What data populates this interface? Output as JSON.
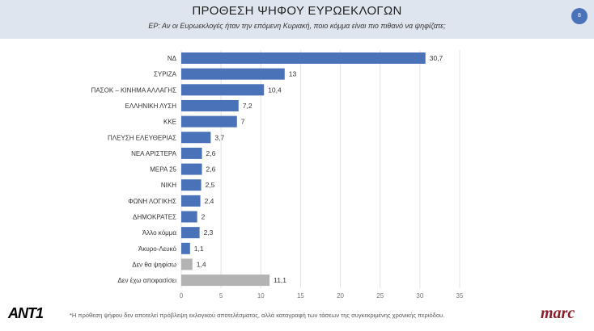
{
  "header": {
    "title": "ΠΡΟΘΕΣΗ ΨΗΦΟΥ ΕΥΡΩΕΚΛΟΓΩΝ",
    "subtitle": "ΕΡ: Αν οι Ευρωεκλογές ήταν την επόμενη Κυριακή, ποιο κόμμα είναι πιο πιθανό να ψηφίζατε;",
    "page_number": "8"
  },
  "footer": {
    "note": "*Η πρόθεση ψήφου δεν αποτελεί πρόβλεψη εκλογικού αποτελέσματος, αλλά καταγραφή των τάσεων της συγκεκριμένης χρονικής περιόδου.",
    "logo_left": "ANT1",
    "logo_right": "marc"
  },
  "chart_data": {
    "type": "bar",
    "orientation": "horizontal",
    "categories": [
      "ΝΔ",
      "ΣΥΡΙΖΑ",
      "ΠΑΣΟΚ – ΚΙΝΗΜΑ ΑΛΛΑΓΗΣ",
      "ΕΛΛΗΝΙΚΗ ΛΥΣΗ",
      "ΚΚΕ",
      "ΠΛΕΥΣΗ ΕΛΕΥΘΕΡΙΑΣ",
      "ΝΕΑ ΑΡΙΣΤΕΡΑ",
      "ΜΕΡΑ 25",
      "ΝΙΚΗ",
      "ΦΩΝΗ ΛΟΓΙΚΗΣ",
      "ΔΗΜΟΚΡΑΤΕΣ",
      "Άλλο κόμμα",
      "Άκυρο-Λευκό",
      "Δεν θα ψηφίσω",
      "Δεν έχω αποφασίσει"
    ],
    "values": [
      30.7,
      13,
      10.4,
      7.2,
      7,
      3.7,
      2.6,
      2.6,
      2.5,
      2.4,
      2,
      2.3,
      1.1,
      1.4,
      11.1
    ],
    "value_labels": [
      "30,7",
      "13",
      "10,4",
      "7,2",
      "7",
      "3,7",
      "2,6",
      "2,6",
      "2,5",
      "2,4",
      "2",
      "2,3",
      "1,1",
      "1,4",
      "11,1"
    ],
    "bar_colors": [
      "#4a72b8",
      "#4a72b8",
      "#4a72b8",
      "#4a72b8",
      "#4a72b8",
      "#4a72b8",
      "#4a72b8",
      "#4a72b8",
      "#4a72b8",
      "#4a72b8",
      "#4a72b8",
      "#4a72b8",
      "#4a72b8",
      "#b3b3b3",
      "#b3b3b3"
    ],
    "xlim": [
      0,
      35
    ],
    "xticks": [
      "0",
      "5",
      "10",
      "15",
      "20",
      "25",
      "30",
      "35"
    ],
    "grid": true
  }
}
